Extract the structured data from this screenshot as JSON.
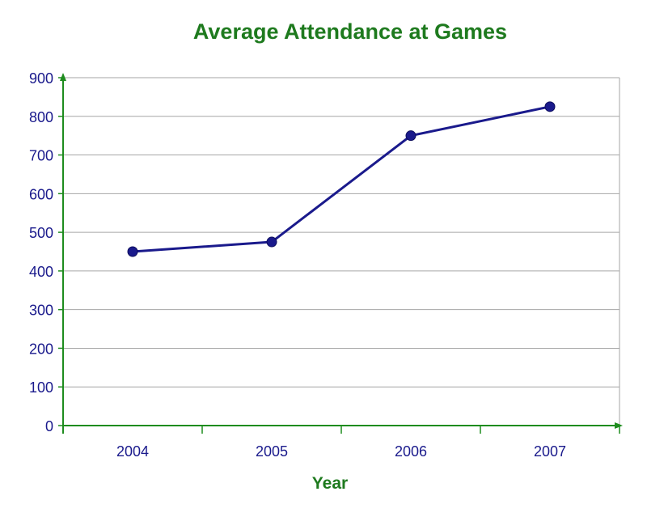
{
  "chart_data": {
    "type": "line",
    "title": "Average Attendance at Games",
    "xlabel": "Year",
    "ylabel": "",
    "categories": [
      "2004",
      "2005",
      "2006",
      "2007"
    ],
    "series": [
      {
        "values": [
          450,
          475,
          750,
          825
        ]
      }
    ],
    "ylim": [
      0,
      900
    ],
    "yticks": [
      0,
      100,
      200,
      300,
      400,
      500,
      600,
      700,
      800,
      900
    ],
    "grid": true,
    "legend": "none",
    "colors": {
      "title": "#1e7a1e",
      "axis": "#1e8c1e",
      "tick_labels": "#1a1a8c",
      "line": "#1a1a8c",
      "marker": "#1a1a8c",
      "grid": "#a6a6a6"
    }
  }
}
